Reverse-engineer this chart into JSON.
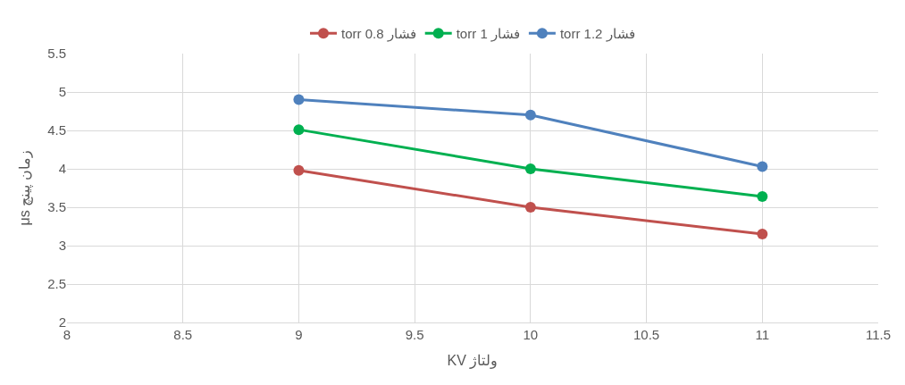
{
  "chart_data": {
    "type": "line",
    "xlabel": "ولتاژ KV",
    "ylabel": "زمان پینچ μs",
    "x": [
      9,
      10,
      11
    ],
    "series": [
      {
        "name": "فشار 0.8 torr",
        "color": "#c0504d",
        "values": [
          3.98,
          3.5,
          3.15
        ]
      },
      {
        "name": "فشار 1 torr",
        "color": "#00b050",
        "values": [
          4.51,
          4.0,
          3.64
        ]
      },
      {
        "name": "فشار 1.2 torr",
        "color": "#4f81bd",
        "values": [
          4.9,
          4.7,
          4.03
        ]
      }
    ],
    "xlim": [
      8,
      11.5
    ],
    "xticks": [
      8,
      8.5,
      9,
      9.5,
      10,
      10.5,
      11,
      11.5
    ],
    "ylim": [
      2,
      5.5
    ],
    "yticks": [
      2,
      2.5,
      3,
      3.5,
      4,
      4.5,
      5,
      5.5
    ],
    "grid": true,
    "legend": "top",
    "marker": "circle",
    "line_style": "solid"
  }
}
